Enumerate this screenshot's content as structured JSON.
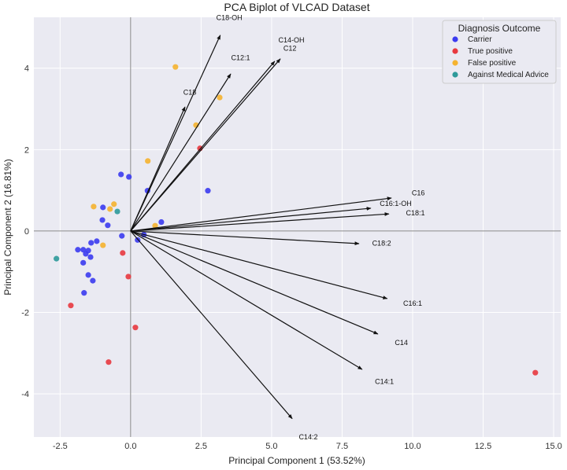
{
  "chart_data": {
    "type": "scatter",
    "title": "PCA Biplot of VLCAD Dataset",
    "xlabel": "Principal Component 1 (53.52%)",
    "ylabel": "Principal Component 2 (16.81%)",
    "xlim": [
      -3.43,
      15.25
    ],
    "ylim": [
      -5.06,
      5.25
    ],
    "xticks": [
      -2.5,
      0.0,
      2.5,
      5.0,
      7.5,
      10.0,
      12.5,
      15.0
    ],
    "xtick_labels": [
      "-2.5",
      "0.0",
      "2.5",
      "5.0",
      "7.5",
      "10.0",
      "12.5",
      "15.0"
    ],
    "yticks": [
      -4,
      -2,
      0,
      2,
      4
    ],
    "ytick_labels": [
      "-4",
      "-2",
      "0",
      "2",
      "4"
    ],
    "grid": true,
    "legend": {
      "title": "Diagnosis Outcome",
      "placement": "top-right"
    },
    "series": [
      {
        "name": "Carrier",
        "color": "#3b3bf0",
        "points": [
          [
            -0.34,
            1.39
          ],
          [
            -0.06,
            1.33
          ],
          [
            0.6,
            0.99
          ],
          [
            2.74,
            0.99
          ],
          [
            -0.98,
            0.58
          ],
          [
            -1.0,
            0.27
          ],
          [
            -0.81,
            0.14
          ],
          [
            1.09,
            0.22
          ],
          [
            -0.31,
            -0.12
          ],
          [
            0.47,
            -0.09
          ],
          [
            0.25,
            -0.22
          ],
          [
            -1.2,
            -0.25
          ],
          [
            -1.4,
            -0.29
          ],
          [
            -1.87,
            -0.46
          ],
          [
            -1.68,
            -0.46
          ],
          [
            -1.5,
            -0.48
          ],
          [
            -1.59,
            -0.56
          ],
          [
            -1.42,
            -0.64
          ],
          [
            -1.68,
            -0.78
          ],
          [
            -1.5,
            -1.08
          ],
          [
            -1.34,
            -1.22
          ],
          [
            -1.65,
            -1.52
          ]
        ]
      },
      {
        "name": "True positive",
        "color": "#e8393f",
        "points": [
          [
            2.46,
            2.03
          ],
          [
            -0.28,
            -0.54
          ],
          [
            -0.08,
            -1.12
          ],
          [
            -2.12,
            -1.83
          ],
          [
            0.17,
            -2.37
          ],
          [
            -0.78,
            -3.22
          ],
          [
            14.35,
            -3.48
          ]
        ]
      },
      {
        "name": "False positive",
        "color": "#f5b32f",
        "points": [
          [
            1.59,
            4.03
          ],
          [
            3.16,
            3.28
          ],
          [
            2.32,
            2.6
          ],
          [
            0.61,
            1.72
          ],
          [
            -1.31,
            0.6
          ],
          [
            -0.73,
            0.54
          ],
          [
            -0.59,
            0.66
          ],
          [
            0.87,
            0.13
          ],
          [
            -0.98,
            -0.35
          ]
        ]
      },
      {
        "name": "Against Medical Advice",
        "color": "#2e9a9a",
        "points": [
          [
            -0.47,
            0.48
          ],
          [
            -2.63,
            -0.68
          ]
        ]
      }
    ],
    "loadings": [
      {
        "name": "C18-OH",
        "x": 3.18,
        "y": 4.81,
        "lx": 3.5,
        "ly": 5.3
      },
      {
        "name": "C12:1",
        "x": 3.55,
        "y": 3.86,
        "lx": 3.9,
        "ly": 4.2
      },
      {
        "name": "C18",
        "x": 1.93,
        "y": 3.05,
        "lx": 2.1,
        "ly": 3.35
      },
      {
        "name": "C14-OH",
        "x": 5.31,
        "y": 4.23,
        "lx": 5.7,
        "ly": 4.63
      },
      {
        "name": "C12",
        "x": 5.11,
        "y": 4.17,
        "lx": 5.65,
        "ly": 4.55
      },
      {
        "name": "C16",
        "x": 9.25,
        "y": 0.81,
        "lx": 10.2,
        "ly": 0.88
      },
      {
        "name": "C16:1-OH",
        "x": 8.52,
        "y": 0.56,
        "lx": 9.4,
        "ly": 0.62
      },
      {
        "name": "C18:1",
        "x": 9.16,
        "y": 0.42,
        "lx": 10.1,
        "ly": 0.44
      },
      {
        "name": "C18:2",
        "x": 8.1,
        "y": -0.31,
        "lx": 8.9,
        "ly": -0.36
      },
      {
        "name": "C16:1",
        "x": 9.1,
        "y": -1.66,
        "lx": 10.0,
        "ly": -1.84
      },
      {
        "name": "C14",
        "x": 8.77,
        "y": -2.53,
        "lx": 9.6,
        "ly": -2.8
      },
      {
        "name": "C14:1",
        "x": 8.21,
        "y": -3.4,
        "lx": 9.0,
        "ly": -3.76
      },
      {
        "name": "C14:2",
        "x": 5.73,
        "y": -4.61,
        "lx": 6.3,
        "ly": -5.12
      }
    ]
  }
}
